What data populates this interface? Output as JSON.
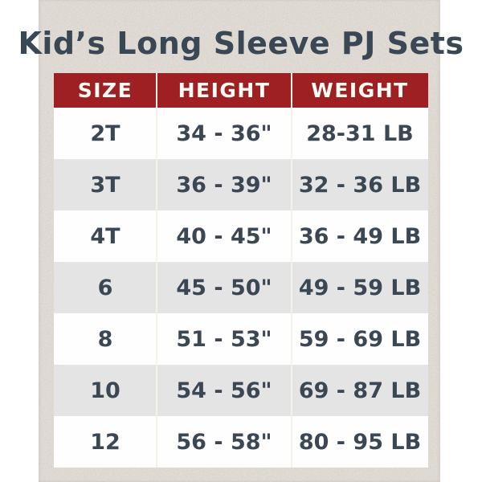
{
  "title": "Kid’s Long Sleeve PJ Sets",
  "table": {
    "columns": [
      "SIZE",
      "HEIGHT",
      "WEIGHT"
    ],
    "rows": [
      {
        "size": "2T",
        "height": "34 - 36\"",
        "weight": "28-31 LB"
      },
      {
        "size": "3T",
        "height": "36 - 39\"",
        "weight": "32 - 36 LB"
      },
      {
        "size": "4T",
        "height": "40 - 45\"",
        "weight": "36 - 49 LB"
      },
      {
        "size": "6",
        "height": "45 - 50\"",
        "weight": "49 - 59 LB"
      },
      {
        "size": "8",
        "height": "51 - 53\"",
        "weight": "59 - 69 LB"
      },
      {
        "size": "10",
        "height": "54 - 56\"",
        "weight": "69 - 87 LB"
      },
      {
        "size": "12",
        "height": "56 - 58\"",
        "weight": "80 - 95 LB"
      }
    ]
  },
  "colors": {
    "header_red": "#9e2023",
    "title_slate": "#3a4754",
    "cell_text": "#3c4754",
    "row_alt_gray": "#e4e4e5",
    "row_white": "#fefefe",
    "paper_beige": "#e6e2db",
    "page_margin_white": "#ffffff",
    "divider_light": "#f3f1ea"
  }
}
